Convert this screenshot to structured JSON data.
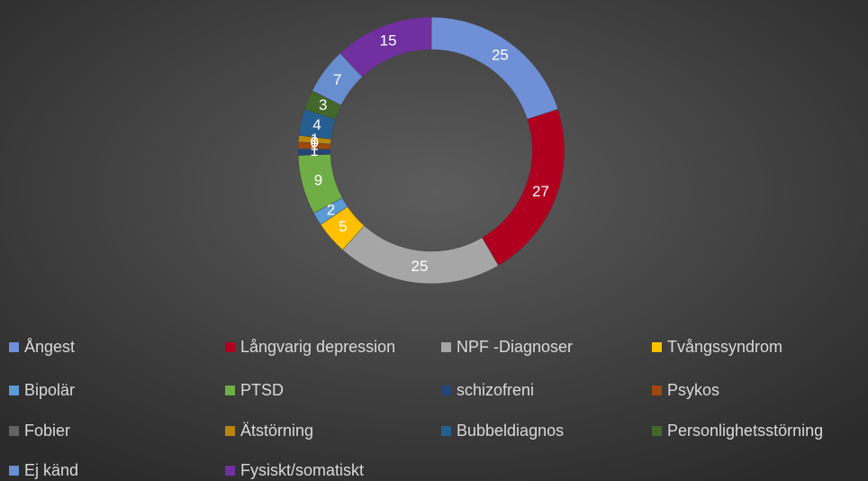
{
  "chart_data": {
    "type": "doughnut",
    "categories": [
      "Ångest",
      "Långvarig depression",
      "NPF -Diagnoser",
      "Tvångssyndrom",
      "Bipolär",
      "PTSD",
      "schizofreni",
      "Psykos",
      "Fobier",
      "Ätstörning",
      "Bubbeldiagnos",
      "Personlighetsstörning",
      "Ej känd",
      "Fysiskt/somatiskt"
    ],
    "values": [
      25,
      27,
      25,
      5,
      2,
      9,
      1,
      1,
      0,
      1,
      4,
      3,
      7,
      15
    ],
    "colors": [
      "#6f8fd6",
      "#b00020",
      "#a6a6a6",
      "#ffc000",
      "#5b9bd5",
      "#70ad47",
      "#264478",
      "#9e480e",
      "#636363",
      "#b8860b",
      "#255e91",
      "#43682b",
      "#698ed0",
      "#7030a0"
    ],
    "legend": "bottom"
  }
}
